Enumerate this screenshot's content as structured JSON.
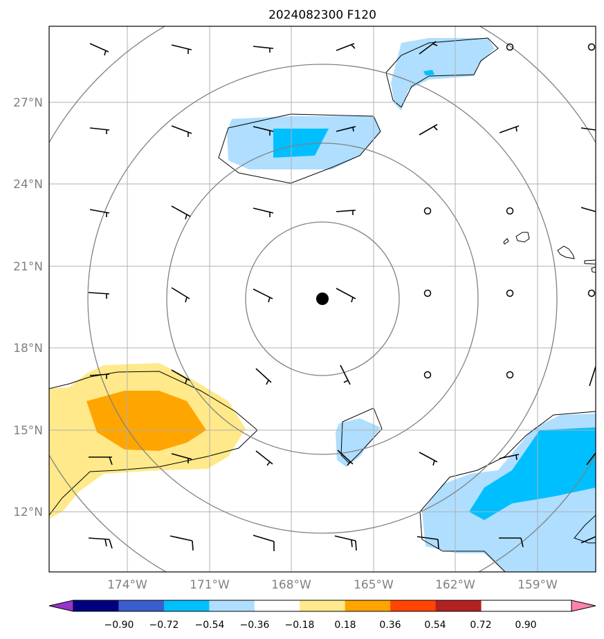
{
  "title": "2024082300 F120",
  "map": {
    "lat_labels": [
      "27°N",
      "24°N",
      "21°N",
      "18°N",
      "15°N",
      "12°N"
    ],
    "lon_labels": [
      "174°W",
      "171°W",
      "168°W",
      "165°W",
      "162°W",
      "159°W"
    ],
    "center_marker": "storm-center-dot",
    "range_rings": 4
  },
  "colorbar": {
    "ticks": [
      "−0.90",
      "−0.72",
      "−0.54",
      "−0.36",
      "−0.18",
      "0.18",
      "0.36",
      "0.54",
      "0.72",
      "0.90"
    ],
    "colors": [
      "#9933cc",
      "#000080",
      "#3a5fcd",
      "#00bfff",
      "#afdeff",
      "#ffffff",
      "#ffe98a",
      "#ffa500",
      "#ff4500",
      "#b22222",
      "#ff82ab"
    ]
  }
}
